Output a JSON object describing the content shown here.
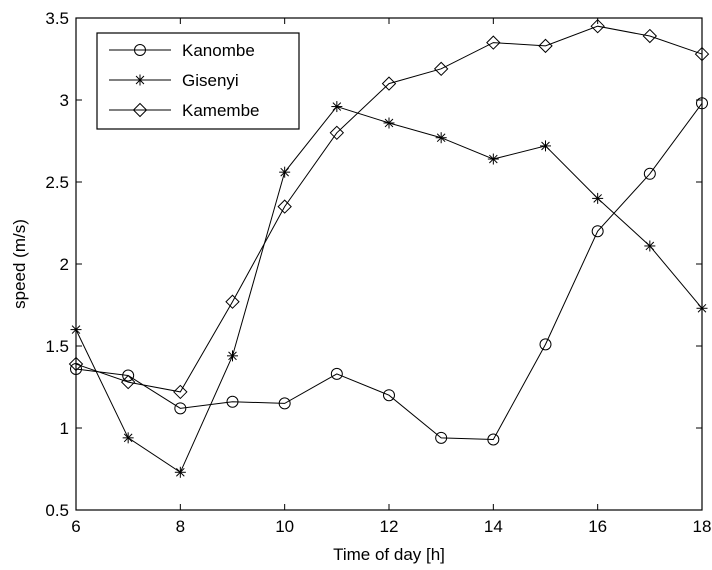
{
  "chart_data": {
    "type": "line",
    "title": "",
    "xlabel": "Time of day [h]",
    "ylabel": "speed (m/s)",
    "xlim": [
      6,
      18
    ],
    "ylim": [
      0.5,
      3.5
    ],
    "xticks": [
      6,
      8,
      10,
      12,
      14,
      16,
      18
    ],
    "yticks": [
      0.5,
      1,
      1.5,
      2,
      2.5,
      3,
      3.5
    ],
    "xtick_labels": [
      "6",
      "8",
      "10",
      "12",
      "14",
      "16",
      "18"
    ],
    "ytick_labels": [
      "0.5",
      "1",
      "1.5",
      "2",
      "2.5",
      "3",
      "3.5"
    ],
    "grid": false,
    "legend_position": "top-left",
    "x": [
      6,
      7,
      8,
      9,
      10,
      11,
      12,
      13,
      14,
      15,
      16,
      17,
      18
    ],
    "series": [
      {
        "name": "Kanombe",
        "marker": "circle",
        "color": "#000000",
        "values": [
          1.36,
          1.32,
          1.12,
          1.16,
          1.15,
          1.33,
          1.2,
          0.94,
          0.93,
          1.51,
          2.2,
          2.55,
          2.98
        ]
      },
      {
        "name": "Gisenyi",
        "marker": "star",
        "color": "#000000",
        "values": [
          1.6,
          0.94,
          0.73,
          1.44,
          2.56,
          2.96,
          2.86,
          2.77,
          2.64,
          2.72,
          2.4,
          2.11,
          1.73
        ]
      },
      {
        "name": "Kamembe",
        "marker": "diamond",
        "color": "#000000",
        "values": [
          1.39,
          1.28,
          1.22,
          1.77,
          2.35,
          2.8,
          3.1,
          3.19,
          3.35,
          3.33,
          3.45,
          3.39,
          3.28
        ]
      }
    ]
  }
}
